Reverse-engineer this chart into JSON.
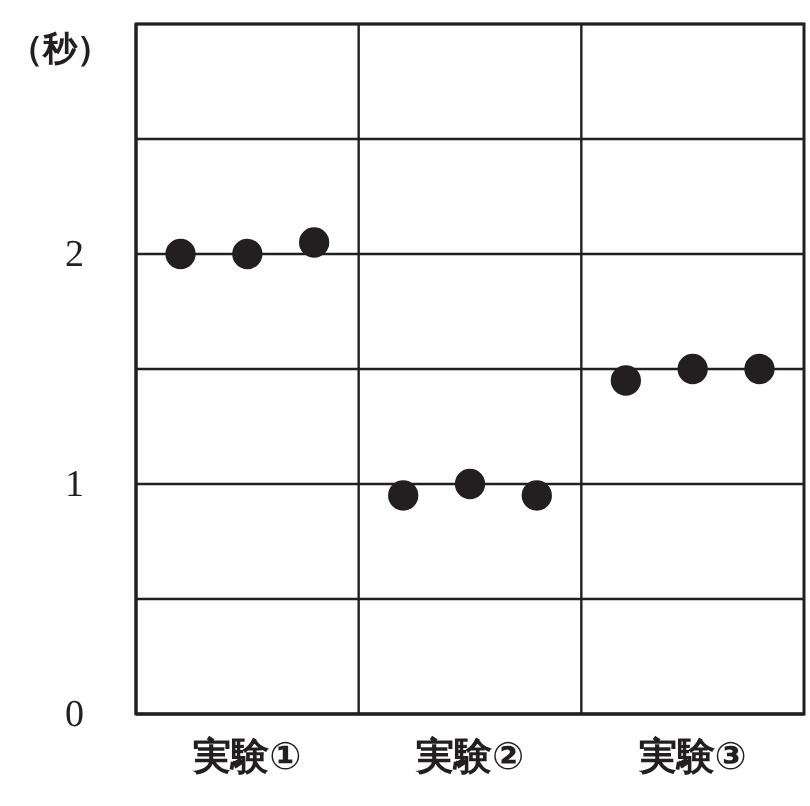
{
  "chart_data": {
    "type": "scatter",
    "ylabel": "（秒）",
    "categories": [
      "実験①",
      "実験②",
      "実験③"
    ],
    "series": [
      {
        "color": "#231f20",
        "values": [
          2.0,
          0.95,
          1.45
        ]
      },
      {
        "color": "#231f20",
        "values": [
          2.0,
          1.0,
          1.5
        ]
      },
      {
        "color": "#231f20",
        "values": [
          2.05,
          0.95,
          1.5
        ]
      }
    ],
    "ylim": [
      0,
      3
    ],
    "yticks": [
      0,
      {
        "value": 0.5,
        "label": null
      },
      1,
      {
        "value": 1.5,
        "label": null
      },
      2,
      {
        "value": 2.5,
        "label": null
      },
      {
        "value": 3,
        "label": null
      }
    ],
    "grid": true,
    "marker": "circle"
  }
}
